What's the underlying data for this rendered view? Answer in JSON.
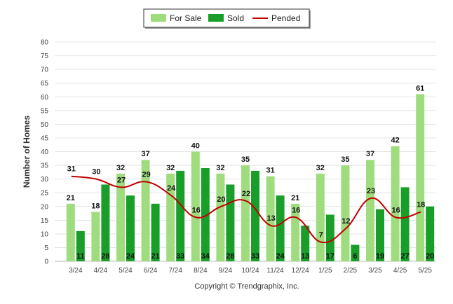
{
  "chart_data": {
    "type": "bar",
    "categories": [
      "3/24",
      "4/24",
      "5/24",
      "6/24",
      "7/24",
      "8/24",
      "9/24",
      "10/24",
      "11/24",
      "12/24",
      "1/25",
      "2/25",
      "3/25",
      "4/25",
      "5/25"
    ],
    "series": [
      {
        "name": "For Sale",
        "type": "bar",
        "color": "#9edc7e",
        "values": [
          21,
          18,
          32,
          37,
          32,
          40,
          32,
          35,
          31,
          21,
          32,
          35,
          37,
          42,
          61
        ]
      },
      {
        "name": "Sold",
        "type": "bar",
        "color": "#1a9e2a",
        "values": [
          11,
          28,
          24,
          21,
          33,
          34,
          28,
          33,
          24,
          13,
          17,
          6,
          19,
          27,
          20
        ]
      },
      {
        "name": "Pended",
        "type": "line",
        "color": "#c00000",
        "values": [
          31,
          30,
          27,
          29,
          24,
          16,
          20,
          22,
          13,
          16,
          7,
          12,
          23,
          16,
          18
        ]
      }
    ],
    "ylabel": "Number of Homes",
    "ylim": [
      0,
      80
    ],
    "yticks": [
      0,
      5,
      10,
      15,
      20,
      25,
      30,
      35,
      40,
      45,
      50,
      55,
      60,
      65,
      70,
      75,
      80
    ],
    "grid": true,
    "legend_position": "top-center"
  },
  "footer": {
    "copyright": "Copyright © Trendgraphix, Inc."
  }
}
